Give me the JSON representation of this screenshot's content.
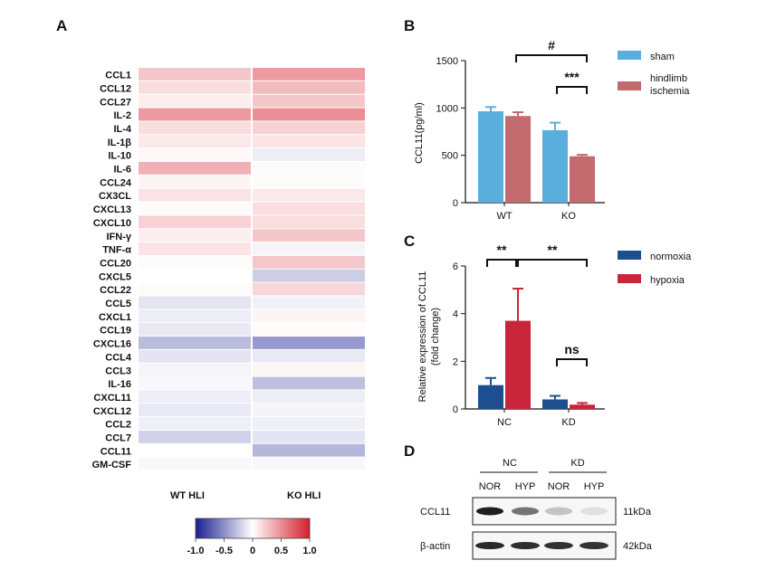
{
  "panel_letters": {
    "a": "A",
    "b": "B",
    "c": "C",
    "d": "D"
  },
  "chart_data": [
    {
      "panel": "A",
      "type": "heatmap",
      "genes": [
        "CCL1",
        "CCL12",
        "CCL27",
        "IL-2",
        "IL-4",
        "IL-1β",
        "IL-10",
        "IL-6",
        "CCL24",
        "CX3CL",
        "CXCL13",
        "CXCL10",
        "IFN-γ",
        "TNF-α",
        "CCL20",
        "CXCL5",
        "CCL22",
        "CCL5",
        "CXCL1",
        "CCL19",
        "CXCL16",
        "CCL4",
        "CCL3",
        "IL-16",
        "CXCL11",
        "CXCL12",
        "CCL2",
        "CCL7",
        "CCL11",
        "GM-CSF"
      ],
      "columns": [
        "WT HLI",
        "KO HLI"
      ],
      "values": [
        [
          0.25,
          0.45
        ],
        [
          0.15,
          0.3
        ],
        [
          0.08,
          0.25
        ],
        [
          0.45,
          0.5
        ],
        [
          0.15,
          0.2
        ],
        [
          0.1,
          0.12
        ],
        [
          0.03,
          -0.08
        ],
        [
          0.35,
          0.02
        ],
        [
          0.05,
          0.02
        ],
        [
          0.12,
          0.1
        ],
        [
          0.02,
          0.15
        ],
        [
          0.2,
          0.15
        ],
        [
          0.08,
          0.25
        ],
        [
          0.12,
          -0.05
        ],
        [
          0.02,
          0.25
        ],
        [
          0.0,
          -0.22
        ],
        [
          0.02,
          0.18
        ],
        [
          -0.12,
          -0.06
        ],
        [
          -0.08,
          0.05
        ],
        [
          -0.1,
          0.02
        ],
        [
          -0.3,
          -0.45
        ],
        [
          -0.12,
          -0.1
        ],
        [
          -0.05,
          0.05
        ],
        [
          -0.03,
          -0.28
        ],
        [
          -0.08,
          -0.08
        ],
        [
          -0.1,
          -0.05
        ],
        [
          -0.07,
          -0.07
        ],
        [
          -0.2,
          -0.12
        ],
        [
          0.0,
          -0.32
        ],
        [
          -0.03,
          -0.03
        ]
      ],
      "colorbar": {
        "ticks": [
          "-1.0",
          "-0.5",
          "0",
          "0.5",
          "1.0"
        ],
        "range": [
          -1.0,
          1.0
        ],
        "colors": {
          "low": "#1a1f8f",
          "mid": "#ffffff",
          "high": "#d41e2b"
        }
      }
    },
    {
      "panel": "B",
      "type": "bar",
      "ylabel": "CCL11(pg/ml)",
      "ylim": [
        0,
        1500
      ],
      "yticks": [
        "0",
        "500",
        "1000",
        "1500"
      ],
      "categories": [
        "WT",
        "KO"
      ],
      "series": [
        {
          "name": "sham",
          "values": [
            965,
            765
          ],
          "errors": [
            45,
            80
          ],
          "color": "#5aaedc"
        },
        {
          "name": "hindlimb ischemia",
          "values": [
            915,
            490
          ],
          "errors": [
            40,
            15
          ],
          "color": "#c26a6e"
        }
      ],
      "legend_labels": {
        "sham": "sham",
        "hi_line1": "hindlimb",
        "hi_line2": "ischemia"
      },
      "annotations": {
        "between_groups": "#",
        "within_ko": "***"
      }
    },
    {
      "panel": "C",
      "type": "bar",
      "ylabel_line1": "Relative expression of CCL11",
      "ylabel_line2": "(fold change)",
      "ylim": [
        0,
        6
      ],
      "yticks": [
        "0",
        "2",
        "4",
        "6"
      ],
      "categories": [
        "NC",
        "KD"
      ],
      "series": [
        {
          "name": "normoxia",
          "values": [
            1.0,
            0.4
          ],
          "errors": [
            0.3,
            0.15
          ],
          "color": "#1d4e8f"
        },
        {
          "name": "hypoxia",
          "values": [
            3.7,
            0.18
          ],
          "errors": [
            1.35,
            0.07
          ],
          "color": "#c8253a"
        }
      ],
      "annotations": {
        "nc_pair": "**",
        "between_hypoxia": "**",
        "kd_pair": "ns"
      }
    }
  ],
  "western_blot": {
    "groups": [
      "NC",
      "KD"
    ],
    "lanes": [
      "NOR",
      "HYP",
      "NOR",
      "HYP"
    ],
    "bands": [
      {
        "protein": "CCL11",
        "size": "11kDa",
        "intensities": [
          0.95,
          0.55,
          0.18,
          0.05
        ]
      },
      {
        "protein": "β-actin",
        "size": "42kDa",
        "intensities": [
          0.9,
          0.88,
          0.86,
          0.85
        ]
      }
    ]
  }
}
